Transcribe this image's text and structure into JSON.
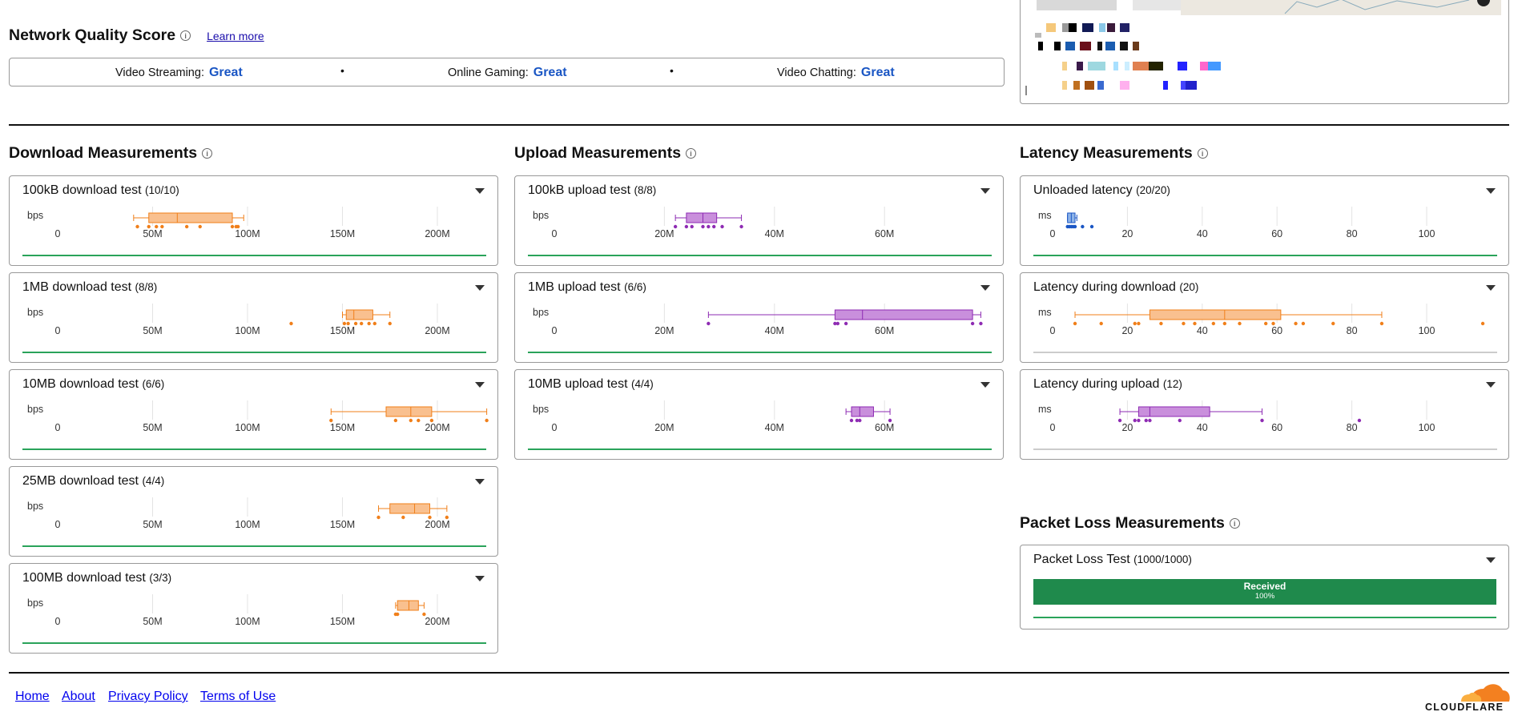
{
  "nqs": {
    "title": "Network Quality Score",
    "learn_more": "Learn more",
    "items": [
      {
        "label": "Video Streaming:",
        "value": "Great"
      },
      {
        "label": "Online Gaming:",
        "value": "Great"
      },
      {
        "label": "Video Chatting:",
        "value": "Great"
      }
    ],
    "separator": "•"
  },
  "download": {
    "title": "Download Measurements",
    "unit": "bps",
    "ticks": [
      "0",
      "50M",
      "100M",
      "150M",
      "200M"
    ],
    "tick_values": [
      0,
      50,
      100,
      150,
      200
    ],
    "color_fill": "#f9c08f",
    "color_stroke": "#f07f1a",
    "cards": [
      {
        "label": "100kB download test",
        "count": "(10/10)",
        "box": [
          40,
          48,
          63,
          92,
          98
        ],
        "points": [
          42,
          48,
          52,
          55,
          68,
          75,
          92,
          94,
          95
        ]
      },
      {
        "label": "1MB download test",
        "count": "(8/8)",
        "box": [
          150,
          152,
          156,
          166,
          175
        ],
        "points": [
          123,
          151,
          153,
          157,
          160,
          164,
          167,
          175
        ]
      },
      {
        "label": "10MB download test",
        "count": "(6/6)",
        "box": [
          144,
          173,
          186,
          197,
          226
        ],
        "points": [
          144,
          178,
          186,
          190,
          197,
          226
        ]
      },
      {
        "label": "25MB download test",
        "count": "(4/4)",
        "box": [
          169,
          175,
          188,
          196,
          205
        ],
        "points": [
          169,
          182,
          196,
          205
        ]
      },
      {
        "label": "100MB download test",
        "count": "(3/3)",
        "box": [
          178,
          179,
          185,
          190,
          193
        ],
        "points": [
          178,
          179,
          193
        ]
      }
    ]
  },
  "upload": {
    "title": "Upload Measurements",
    "unit": "bps",
    "ticks": [
      "0",
      "20M",
      "40M",
      "60M"
    ],
    "tick_values": [
      0,
      20,
      40,
      60
    ],
    "color_fill": "#c98fdc",
    "color_stroke": "#8e2bb3",
    "cards": [
      {
        "label": "100kB upload test",
        "count": "(8/8)",
        "box": [
          22,
          24,
          27,
          29.5,
          34
        ],
        "points": [
          22,
          24,
          25,
          27,
          28,
          29,
          30.5,
          34
        ]
      },
      {
        "label": "1MB upload test",
        "count": "(6/6)",
        "box": [
          28,
          51,
          56,
          76,
          77.5
        ],
        "points": [
          28,
          51,
          51.5,
          53,
          76,
          77.5
        ]
      },
      {
        "label": "10MB upload test",
        "count": "(4/4)",
        "box": [
          53,
          54,
          55.5,
          58,
          61
        ],
        "points": [
          54,
          55,
          55.5,
          61
        ]
      }
    ]
  },
  "latency": {
    "title": "Latency Measurements",
    "unit": "ms",
    "ticks": [
      "0",
      "20",
      "40",
      "60",
      "80",
      "100"
    ],
    "tick_values": [
      0,
      20,
      40,
      60,
      80,
      100
    ],
    "cards": [
      {
        "label": "Unloaded latency",
        "count": "(20/20)",
        "box": [
          4,
          4,
          5,
          6,
          6.5
        ],
        "points": [
          4,
          4.5,
          5,
          5.5,
          6,
          8,
          10.5
        ],
        "color_fill": "#8db3e8",
        "color_stroke": "#1a56c4",
        "line_color": "#2aa35a"
      },
      {
        "label": "Latency during download",
        "count": "(20)",
        "box": [
          6,
          26,
          46,
          61,
          88
        ],
        "points": [
          6,
          13,
          22,
          23,
          29,
          35,
          38,
          43,
          46,
          50,
          57,
          59,
          65,
          67,
          75,
          88,
          115
        ],
        "color_fill": "#f9c08f",
        "color_stroke": "#f07f1a",
        "line_color": "#cccccc"
      },
      {
        "label": "Latency during upload",
        "count": "(12)",
        "box": [
          18,
          23,
          26,
          42,
          56
        ],
        "points": [
          18,
          22,
          23,
          25,
          26,
          34,
          56,
          82
        ],
        "color_fill": "#c98fdc",
        "color_stroke": "#8e2bb3",
        "line_color": "#cccccc"
      }
    ]
  },
  "packet_loss": {
    "title": "Packet Loss Measurements",
    "card_label": "Packet Loss Test",
    "card_count": "(1000/1000)",
    "bar_label": "Received",
    "bar_value": "100%",
    "received_pct": 100
  },
  "footer": {
    "links": [
      "Home",
      "About",
      "Privacy Policy",
      "Terms of Use"
    ],
    "brand": "CLOUDFLARE"
  }
}
